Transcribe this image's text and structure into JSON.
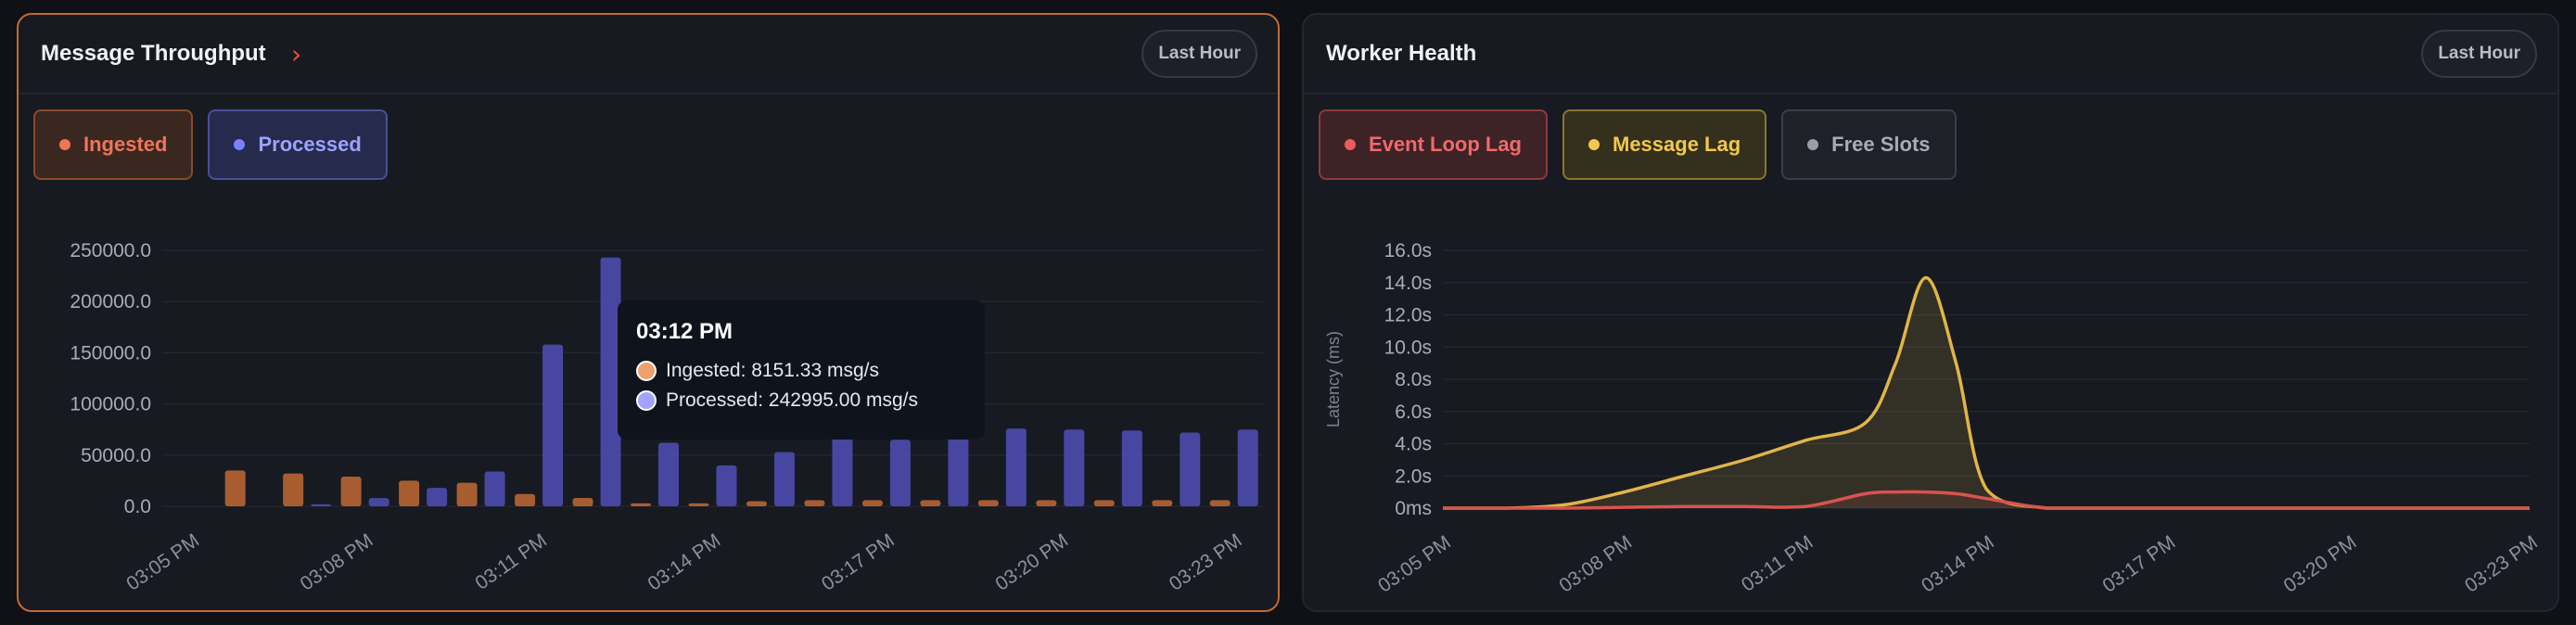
{
  "colors": {
    "ingested": "#c26a33",
    "processed": "#4c4cb0",
    "event_loop_lag": "#d9534f",
    "message_lag": "#e0b548",
    "free_slots": "#8a8d96",
    "accent_border": "#c26a33"
  },
  "throughput": {
    "title": "Message Throughput",
    "chevron_icon": "chevron-right-icon",
    "range_label": "Last Hour",
    "legend": {
      "ingested": "Ingested",
      "processed": "Processed"
    },
    "tooltip": {
      "time": "03:12 PM",
      "ingested": "Ingested: 8151.33 msg/s",
      "processed": "Processed: 242995.00 msg/s"
    }
  },
  "health": {
    "title": "Worker Health",
    "range_label": "Last Hour",
    "legend": {
      "event_loop_lag": "Event Loop Lag",
      "message_lag": "Message Lag",
      "free_slots": "Free Slots"
    }
  },
  "chart_data": [
    {
      "type": "bar",
      "title": "Message Throughput",
      "ylim": [
        0,
        250000
      ],
      "y_ticks": [
        "250000.0",
        "200000.0",
        "150000.0",
        "100000.0",
        "50000.0",
        "0.0"
      ],
      "x_tick_labels": [
        "03:05 PM",
        "03:08 PM",
        "03:11 PM",
        "03:14 PM",
        "03:17 PM",
        "03:20 PM",
        "03:23 PM"
      ],
      "categories": [
        "03:05 PM",
        "03:06 PM",
        "03:07 PM",
        "03:08 PM",
        "03:09 PM",
        "03:10 PM",
        "03:11 PM",
        "03:12 PM",
        "03:13 PM",
        "03:14 PM",
        "03:15 PM",
        "03:16 PM",
        "03:17 PM",
        "03:18 PM",
        "03:19 PM",
        "03:20 PM",
        "03:21 PM",
        "03:22 PM",
        "03:23 PM"
      ],
      "series": [
        {
          "name": "Ingested",
          "values": [
            0,
            35000,
            32000,
            29000,
            25000,
            23000,
            12000,
            8151.33,
            3000,
            3000,
            5000,
            6000,
            6000,
            6000,
            6000,
            6000,
            6000,
            6000,
            6000
          ]
        },
        {
          "name": "Processed",
          "values": [
            0,
            0,
            2000,
            8000,
            18000,
            34000,
            158000,
            242995,
            62000,
            40000,
            53000,
            70000,
            65000,
            75000,
            76000,
            75000,
            74000,
            72000,
            75000
          ]
        }
      ],
      "legend": "top-left",
      "grid": true
    },
    {
      "type": "area",
      "title": "Worker Health",
      "ylabel": "Latency (ms)",
      "ylim": [
        0,
        16
      ],
      "y_ticks": [
        "16.0s",
        "14.0s",
        "12.0s",
        "10.0s",
        "8.0s",
        "6.0s",
        "4.0s",
        "2.0s",
        "0ms"
      ],
      "x_tick_labels": [
        "03:05 PM",
        "03:08 PM",
        "03:11 PM",
        "03:14 PM",
        "03:17 PM",
        "03:20 PM",
        "03:23 PM"
      ],
      "x": [
        0,
        1,
        2,
        3,
        4,
        5,
        6,
        7,
        7.5,
        8,
        8.5,
        9,
        10,
        11,
        12,
        13,
        14,
        15,
        16,
        17,
        18
      ],
      "series": [
        {
          "name": "Message Lag",
          "values": [
            0,
            0,
            0.2,
            1.0,
            2.0,
            3.0,
            4.2,
            5.3,
            9.0,
            14.3,
            9.0,
            1.2,
            0,
            0,
            0,
            0,
            0,
            0,
            0,
            0,
            0
          ]
        },
        {
          "name": "Event Loop Lag",
          "values": [
            0,
            0,
            0,
            0.05,
            0.1,
            0.1,
            0.1,
            0.9,
            1.0,
            1.0,
            0.9,
            0.6,
            0,
            0,
            0,
            0,
            0,
            0,
            0,
            0,
            0
          ]
        }
      ],
      "legend": "top-left",
      "grid": true
    }
  ]
}
